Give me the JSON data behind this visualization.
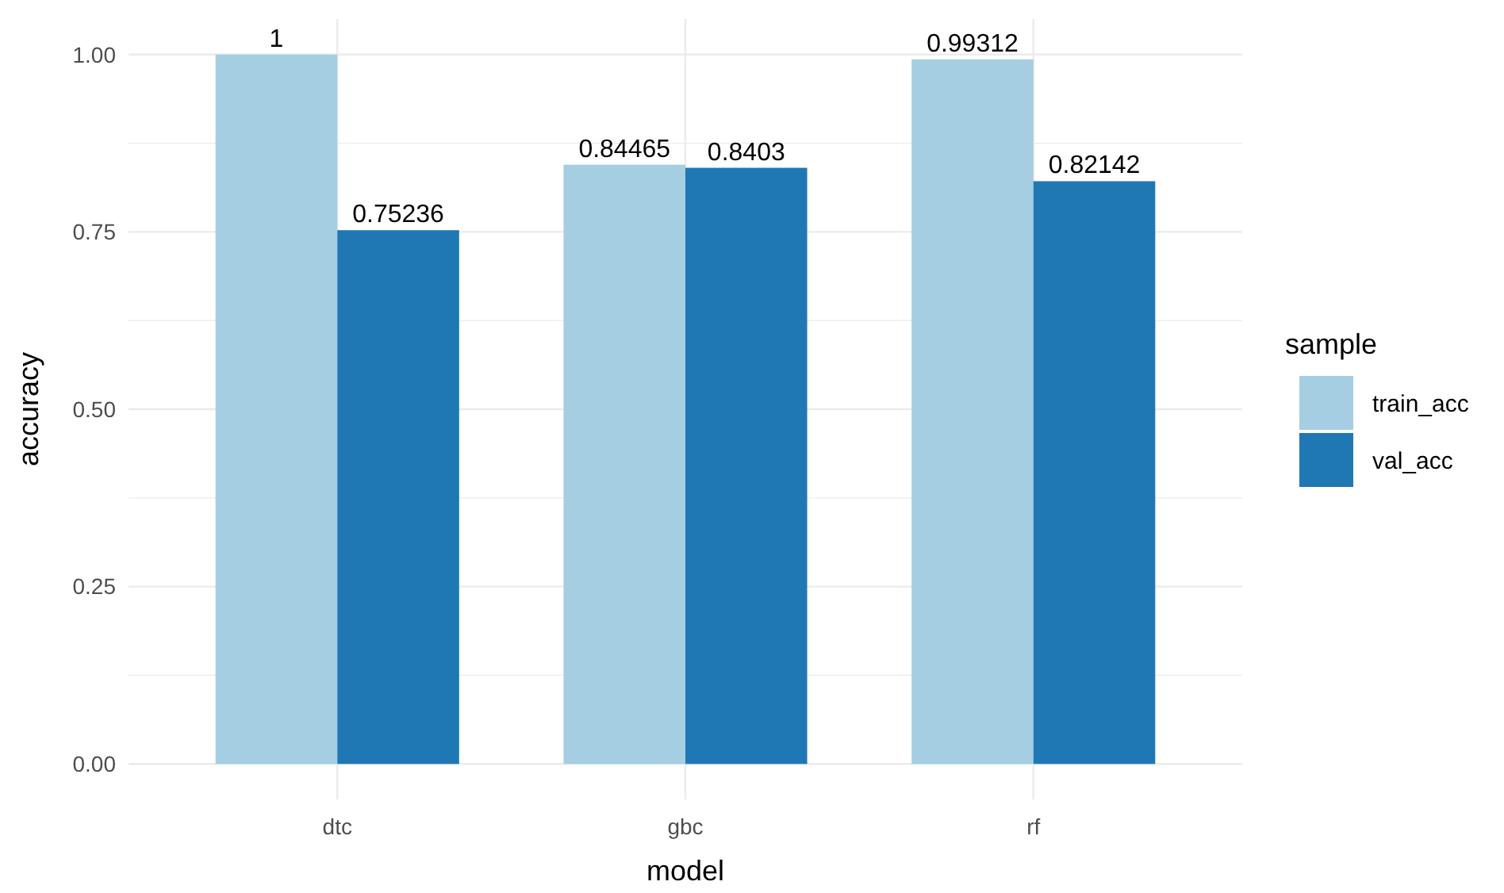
{
  "chart_data": {
    "type": "bar",
    "xlabel": "model",
    "ylabel": "accuracy",
    "legend_title": "sample",
    "categories": [
      "dtc",
      "gbc",
      "rf"
    ],
    "series": [
      {
        "name": "train_acc",
        "color": "#a6cee3",
        "values": [
          1,
          0.84465,
          0.99312
        ]
      },
      {
        "name": "val_acc",
        "color": "#1f78b4",
        "values": [
          0.75236,
          0.8403,
          0.82142
        ]
      }
    ],
    "ylim": [
      -0.05,
      1.05
    ],
    "yticks": [
      {
        "value": 0,
        "label": "0.00"
      },
      {
        "value": 0.25,
        "label": "0.25"
      },
      {
        "value": 0.5,
        "label": "0.50"
      },
      {
        "value": 0.75,
        "label": "0.75"
      },
      {
        "value": 1,
        "label": "1.00"
      }
    ],
    "grid": true,
    "legend": "right",
    "data_labels": true
  }
}
